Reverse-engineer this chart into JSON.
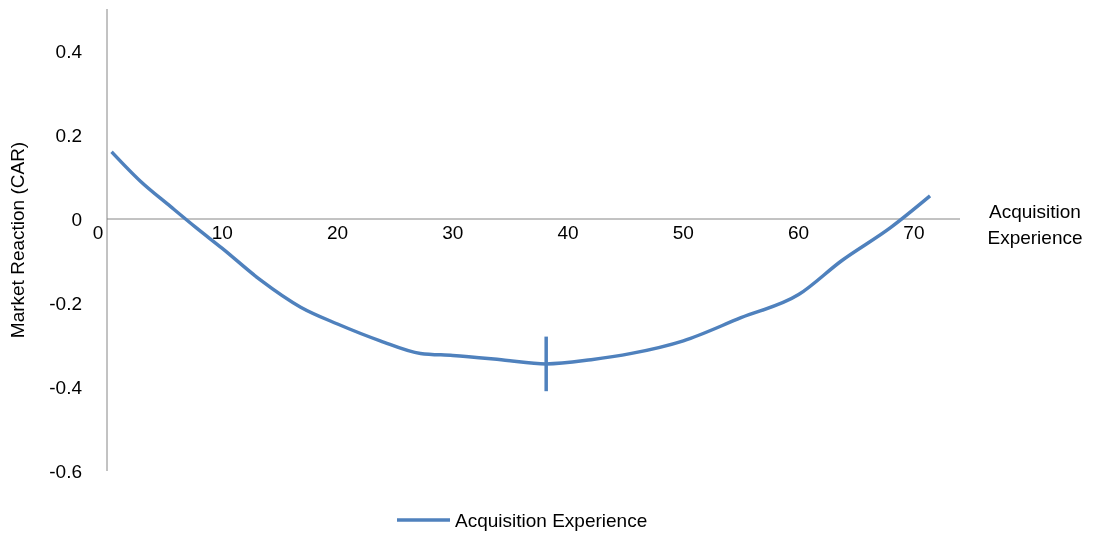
{
  "chart_data": {
    "type": "line",
    "xlabel": "Acquisition Experience",
    "ylabel": "Market Reaction (CAR)",
    "xlim": [
      0,
      74
    ],
    "ylim": [
      -0.6,
      0.5
    ],
    "xticks": [
      0,
      10,
      20,
      30,
      40,
      50,
      60,
      70
    ],
    "yticks": [
      -0.6,
      -0.4,
      -0.2,
      0,
      0.2,
      0.4
    ],
    "legend": "bottom",
    "line_style": "solid",
    "marker": "none",
    "series": [
      {
        "name": "Acquisition Experience",
        "color": "#4f81bd",
        "x": [
          0.4,
          2.9,
          5.5,
          7.7,
          10,
          13.3,
          16.8,
          20,
          23.7,
          27.2,
          30,
          34.2,
          38.1,
          42,
          45.5,
          50,
          55,
          60,
          63.7,
          68,
          71.4
        ],
        "values": [
          0.16,
          0.09,
          0.03,
          -0.02,
          -0.07,
          -0.145,
          -0.21,
          -0.25,
          -0.29,
          -0.32,
          -0.325,
          -0.335,
          -0.345,
          -0.335,
          -0.32,
          -0.29,
          -0.235,
          -0.18,
          -0.1,
          -0.02,
          0.055
        ]
      },
      {
        "color": "#4f81bd",
        "x": [
          38.1,
          38.1
        ],
        "values": [
          -0.28,
          -0.41
        ]
      }
    ]
  }
}
